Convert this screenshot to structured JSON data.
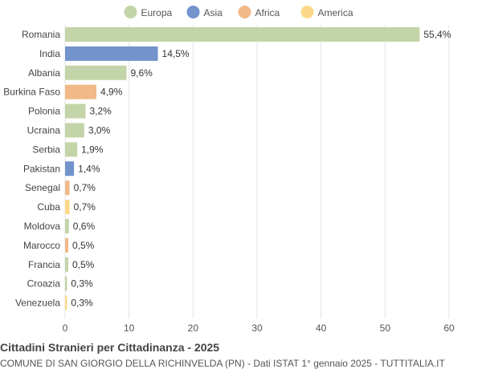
{
  "chart_data": {
    "type": "bar",
    "orientation": "horizontal",
    "title": "Cittadini Stranieri per Cittadinanza - 2025",
    "subtitle": "COMUNE DI SAN GIORGIO DELLA RICHINVELDA (PN) - Dati ISTAT 1° gennaio 2025 - TUTTITALIA.IT",
    "legend": {
      "placement": "top-center",
      "items": [
        {
          "name": "Europa",
          "color": "#c3d4a8"
        },
        {
          "name": "Asia",
          "color": "#7293cc"
        },
        {
          "name": "Africa",
          "color": "#f0b987"
        },
        {
          "name": "America",
          "color": "#fcd98a"
        }
      ]
    },
    "categories": [
      "Romania",
      "India",
      "Albania",
      "Burkina Faso",
      "Polonia",
      "Ucraina",
      "Serbia",
      "Pakistan",
      "Senegal",
      "Cuba",
      "Moldova",
      "Marocco",
      "Francia",
      "Croazia",
      "Venezuela"
    ],
    "values": [
      55.4,
      14.5,
      9.6,
      4.9,
      3.2,
      3.0,
      1.9,
      1.4,
      0.7,
      0.7,
      0.6,
      0.5,
      0.5,
      0.3,
      0.3
    ],
    "value_labels": [
      "55,4%",
      "14,5%",
      "9,6%",
      "4,9%",
      "3,2%",
      "3,0%",
      "1,9%",
      "1,4%",
      "0,7%",
      "0,7%",
      "0,6%",
      "0,5%",
      "0,5%",
      "0,3%",
      "0,3%"
    ],
    "continents": [
      "Europa",
      "Asia",
      "Europa",
      "Africa",
      "Europa",
      "Europa",
      "Europa",
      "Asia",
      "Africa",
      "America",
      "Europa",
      "Africa",
      "Europa",
      "Europa",
      "America"
    ],
    "xlim": [
      0,
      60
    ],
    "xticks": [
      0,
      10,
      20,
      30,
      40,
      50,
      60
    ],
    "grid": true
  }
}
